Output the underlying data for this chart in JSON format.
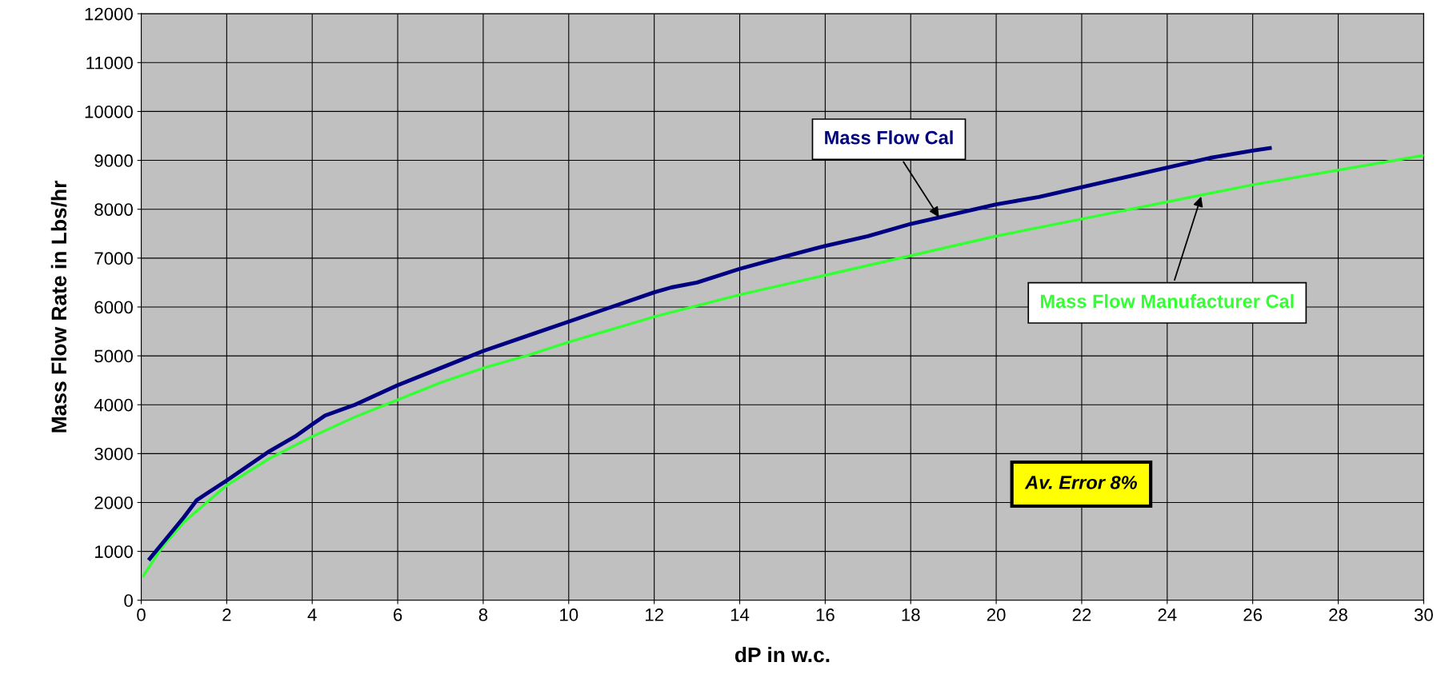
{
  "chart_data": {
    "type": "line",
    "xlabel": "dP in w.c.",
    "ylabel": "Mass Flow Rate in Lbs/hr",
    "xlim": [
      0,
      30
    ],
    "xticks": [
      0,
      2,
      4,
      6,
      8,
      10,
      12,
      14,
      16,
      18,
      20,
      22,
      24,
      26,
      28,
      30
    ],
    "ylim": [
      0,
      12000
    ],
    "yticks": [
      0,
      1000,
      2000,
      3000,
      4000,
      5000,
      6000,
      7000,
      8000,
      9000,
      10000,
      11000,
      12000
    ],
    "grid": true,
    "legend": false,
    "marker": "none",
    "line_style": "solid",
    "series": [
      {
        "name": "Mass Flow Cal",
        "color": "#000080",
        "x": [
          0.2,
          1,
          1.3,
          2,
          3,
          3.6,
          4,
          4.3,
          5,
          6,
          7,
          8,
          9,
          10,
          11,
          12,
          12.4,
          13,
          14,
          15,
          16,
          17,
          18,
          19,
          20,
          21,
          22,
          23,
          24,
          25,
          26,
          26.4
        ],
        "values": [
          850,
          1700,
          2050,
          2450,
          3050,
          3350,
          3600,
          3780,
          4000,
          4400,
          4750,
          5100,
          5400,
          5700,
          6000,
          6300,
          6400,
          6500,
          6780,
          7020,
          7250,
          7450,
          7700,
          7900,
          8100,
          8250,
          8450,
          8650,
          8850,
          9050,
          9200,
          9250
        ]
      },
      {
        "name": "Mass Flow Manufacturer Cal",
        "color": "#33ff33",
        "x": [
          0.05,
          0.5,
          1,
          2,
          3,
          4,
          5,
          6,
          7,
          8,
          9,
          10,
          12,
          14,
          16,
          18,
          20,
          22,
          24,
          26,
          28,
          30
        ],
        "values": [
          500,
          1100,
          1600,
          2350,
          2900,
          3350,
          3750,
          4100,
          4450,
          4750,
          5000,
          5280,
          5800,
          6250,
          6650,
          7050,
          7450,
          7800,
          8150,
          8500,
          8800,
          9100
        ]
      }
    ],
    "annotations": [
      "Av. Error 8%"
    ]
  }
}
